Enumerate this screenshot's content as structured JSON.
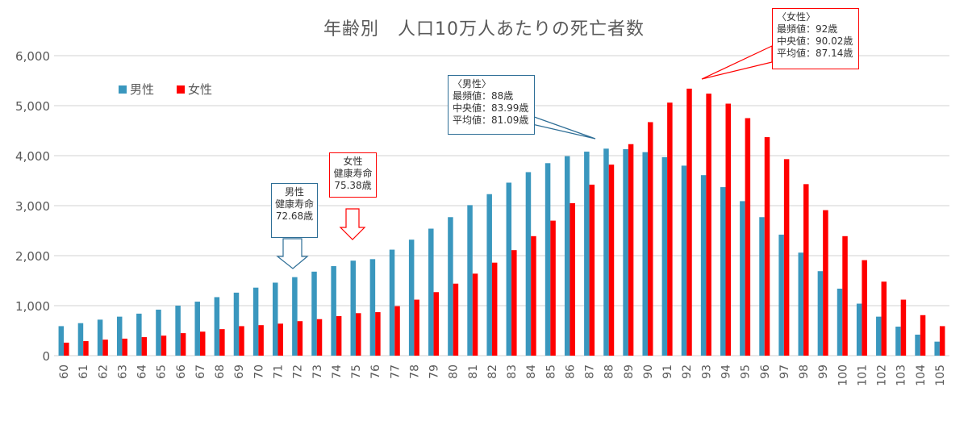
{
  "chart_data": {
    "type": "bar",
    "title": "年齢別　人口10万人あたりの死亡者数",
    "xlabel": "",
    "ylabel": "",
    "ylim": [
      0,
      6000
    ],
    "yticks": [
      0,
      1000,
      2000,
      3000,
      4000,
      5000,
      6000
    ],
    "ytick_labels": [
      "0",
      "1,000",
      "2,000",
      "3,000",
      "4,000",
      "5,000",
      "6,000"
    ],
    "grid": true,
    "legend_position": "top-left",
    "categories": [
      "60",
      "61",
      "62",
      "63",
      "64",
      "65",
      "66",
      "67",
      "68",
      "69",
      "70",
      "71",
      "72",
      "73",
      "74",
      "75",
      "76",
      "77",
      "78",
      "79",
      "80",
      "81",
      "82",
      "83",
      "84",
      "85",
      "86",
      "87",
      "88",
      "89",
      "90",
      "91",
      "92",
      "93",
      "94",
      "95",
      "96",
      "97",
      "98",
      "99",
      "100",
      "101",
      "102",
      "103",
      "104",
      "105"
    ],
    "series": [
      {
        "name": "男性",
        "color": "#3A97BE",
        "values": [
          590,
          650,
          720,
          780,
          840,
          920,
          1000,
          1080,
          1170,
          1260,
          1360,
          1460,
          1570,
          1680,
          1790,
          1900,
          1930,
          2120,
          2320,
          2540,
          2770,
          3010,
          3230,
          3460,
          3670,
          3850,
          3990,
          4080,
          4140,
          4130,
          4070,
          3970,
          3800,
          3610,
          3370,
          3090,
          2770,
          2420,
          2060,
          1690,
          1340,
          1040,
          780,
          580,
          420,
          280
        ]
      },
      {
        "name": "女性",
        "color": "#FF0000",
        "values": [
          260,
          290,
          320,
          340,
          370,
          400,
          450,
          480,
          530,
          590,
          610,
          640,
          690,
          730,
          790,
          850,
          870,
          990,
          1120,
          1270,
          1440,
          1640,
          1860,
          2110,
          2390,
          2700,
          3050,
          3420,
          3820,
          4230,
          4670,
          5060,
          5340,
          5240,
          5040,
          4750,
          4370,
          3930,
          3430,
          2910,
          2390,
          1910,
          1480,
          1120,
          810,
          590
        ]
      }
    ],
    "annotations": [
      {
        "id": "male-stats",
        "lines": [
          "〈男性〉",
          "最頻値：88歳",
          "中央値：83.99歳",
          "平均値：81.09歳"
        ],
        "color": "#2E6E96"
      },
      {
        "id": "female-stats",
        "lines": [
          "〈女性〉",
          "最頻値：92歳",
          "中央値：90.02歳",
          "平均値：87.14歳"
        ],
        "color": "#FF0000"
      },
      {
        "id": "male-healthy-life",
        "lines": [
          "男性",
          "健康寿命",
          "72.68歳"
        ],
        "color": "#2E6E96",
        "age": 72
      },
      {
        "id": "female-healthy-life",
        "lines": [
          "女性",
          "健康寿命",
          "75.38歳"
        ],
        "color": "#FF0000",
        "age": 75
      }
    ]
  },
  "legend": {
    "male": "男性",
    "female": "女性"
  },
  "callouts": {
    "male_stats": "〈男性〉\n最頻値：88歳\n中央値：83.99歳\n平均値：81.09歳",
    "female_stats": "〈女性〉\n最頻値：92歳\n中央値：90.02歳\n平均値：87.14歳",
    "male_healthy": "男性\n健康寿命\n72.68歳",
    "female_healthy": "女性\n健康寿命\n75.38歳"
  },
  "colors": {
    "male": "#3A97BE",
    "female": "#FF0000",
    "grid": "#D9D9D9",
    "text": "#595959",
    "male_callout": "#2E6E96"
  }
}
